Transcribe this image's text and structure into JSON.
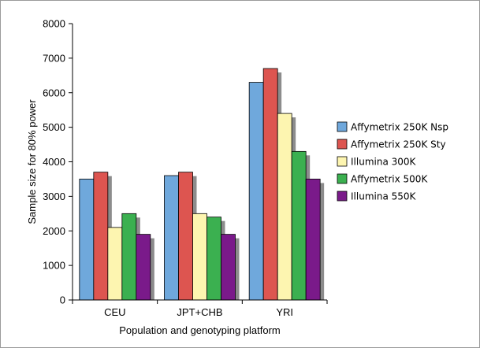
{
  "chart_data": {
    "type": "bar",
    "title": "",
    "xlabel": "Population and genotyping platform",
    "ylabel": "Sample size for 80% power",
    "ylim": [
      0,
      8000
    ],
    "yticks": [
      "0",
      "1000",
      "2000",
      "3000",
      "4000",
      "5000",
      "6000",
      "7000",
      "8000"
    ],
    "categories": [
      "CEU",
      "JPT+CHB",
      "YRI"
    ],
    "legend_position": "right",
    "grid": false,
    "series": [
      {
        "name": "Affymetrix 250K Nsp",
        "color": "#6fa8dc",
        "values": [
          3500,
          3600,
          6300
        ]
      },
      {
        "name": "Affymetrix 250K Sty",
        "color": "#dd5550",
        "values": [
          3700,
          3700,
          6700
        ]
      },
      {
        "name": "Illumina 300K",
        "color": "#fdf5b0",
        "values": [
          2100,
          2500,
          5400
        ]
      },
      {
        "name": "Affymetrix 500K",
        "color": "#3bb050",
        "values": [
          2500,
          2400,
          4300
        ]
      },
      {
        "name": "Illumina 550K",
        "color": "#7a1a8a",
        "values": [
          1900,
          1900,
          3500
        ]
      }
    ]
  }
}
